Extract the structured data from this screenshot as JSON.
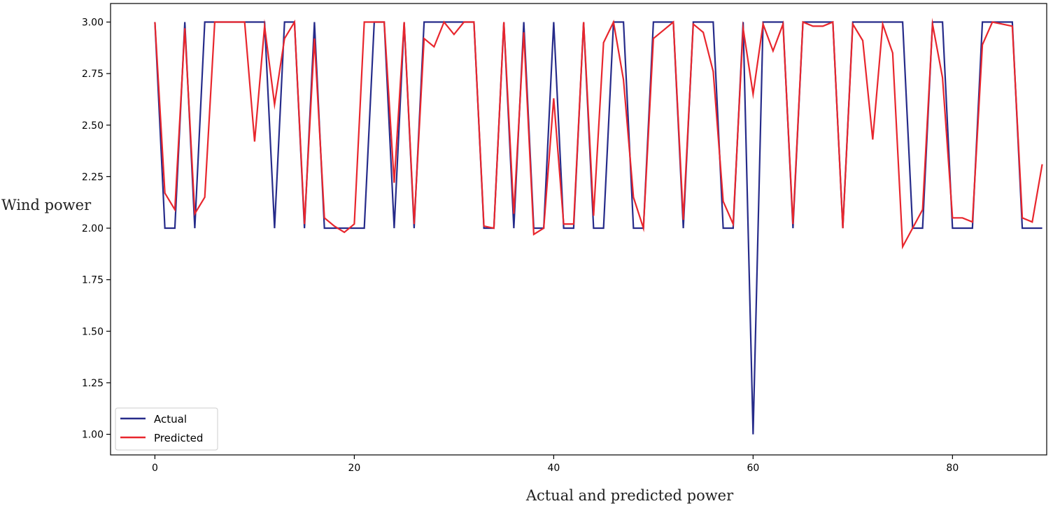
{
  "chart_data": {
    "type": "line",
    "xlabel": "Actual and predicted power",
    "ylabel": "Wind power",
    "xlim": [
      -4.45,
      89.45
    ],
    "ylim": [
      0.9,
      3.09
    ],
    "xticks": [
      0,
      20,
      40,
      60,
      80
    ],
    "yticks": [
      1.0,
      1.25,
      1.5,
      1.75,
      2.0,
      2.25,
      2.5,
      2.75,
      3.0
    ],
    "ytick_labels": [
      "1.00",
      "1.25",
      "1.50",
      "1.75",
      "2.00",
      "2.25",
      "2.50",
      "2.75",
      "3.00"
    ],
    "grid": false,
    "legend_position": "lower-left",
    "series": [
      {
        "name": "Actual",
        "color": "#262b8a",
        "values": [
          3,
          2,
          2,
          3,
          2,
          3,
          3,
          3,
          3,
          3,
          3,
          3,
          2,
          3,
          3,
          2,
          3,
          2,
          2,
          2,
          2,
          2,
          3,
          3,
          2,
          3,
          2,
          3,
          3,
          3,
          3,
          3,
          3,
          2,
          2,
          3,
          2,
          3,
          2,
          2,
          3,
          2,
          2,
          3,
          2,
          2,
          3,
          3,
          2,
          2,
          3,
          3,
          3,
          2,
          3,
          3,
          3,
          2,
          2,
          3,
          1,
          3,
          3,
          3,
          2,
          3,
          3,
          3,
          3,
          2,
          3,
          3,
          3,
          3,
          3,
          3,
          2,
          2,
          3,
          3,
          2,
          2,
          2,
          3,
          3,
          3,
          3,
          2,
          2,
          2
        ]
      },
      {
        "name": "Predicted",
        "color": "#e8262d",
        "values": [
          3.0,
          2.17,
          2.09,
          2.97,
          2.07,
          2.15,
          3.0,
          3.0,
          3.0,
          3.0,
          2.42,
          2.98,
          2.6,
          2.92,
          3.0,
          2.02,
          2.92,
          2.05,
          2.01,
          1.98,
          2.02,
          3.0,
          3.0,
          3.0,
          2.22,
          3.0,
          2.02,
          2.92,
          2.88,
          3.0,
          2.94,
          3.0,
          3.0,
          2.01,
          2.0,
          3.0,
          2.07,
          2.95,
          1.97,
          2.0,
          2.63,
          2.02,
          2.02,
          3.0,
          2.06,
          2.9,
          3.0,
          2.72,
          2.15,
          2.0,
          2.92,
          2.96,
          3.0,
          2.04,
          2.99,
          2.95,
          2.76,
          2.13,
          2.02,
          2.97,
          2.65,
          2.99,
          2.86,
          2.99,
          2.02,
          3.0,
          2.98,
          2.98,
          3.0,
          2.0,
          2.99,
          2.91,
          2.43,
          2.99,
          2.85,
          1.91,
          2.0,
          2.09,
          2.99,
          2.73,
          2.05,
          2.05,
          2.03,
          2.89,
          3.0,
          2.99,
          2.98,
          2.05,
          2.03,
          2.31
        ]
      }
    ]
  }
}
